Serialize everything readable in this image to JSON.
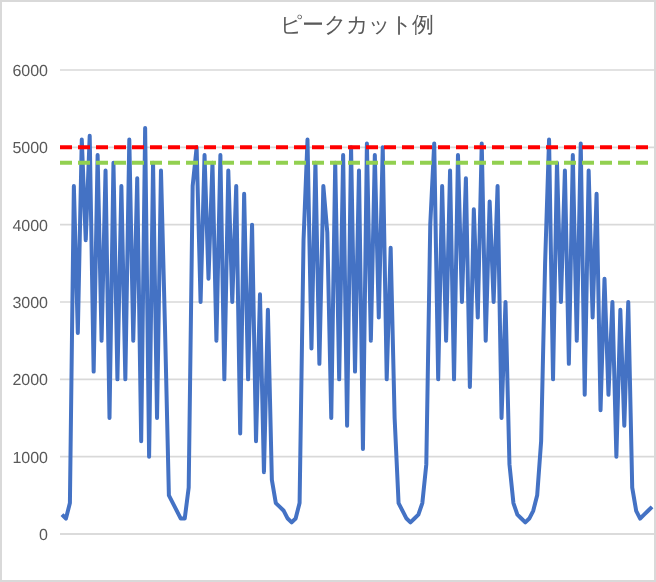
{
  "chart_data": {
    "type": "line",
    "title": "ピークカット例",
    "categories": [
      null,
      null,
      null,
      null,
      null,
      null,
      null,
      null,
      null,
      null,
      null,
      null,
      null,
      null,
      null,
      null,
      null,
      null,
      null,
      null,
      null,
      null,
      null,
      null,
      null,
      null,
      null,
      null,
      null,
      null,
      null,
      null,
      null,
      null,
      null,
      null,
      null,
      null,
      null,
      null,
      null,
      null,
      null,
      null,
      null,
      null,
      null,
      null,
      null,
      null,
      null,
      null,
      null,
      null,
      null,
      null,
      null,
      null,
      null,
      null,
      null,
      null,
      null,
      null,
      null,
      null,
      null,
      null,
      null,
      null,
      null,
      null,
      null,
      null,
      null,
      null,
      null,
      null,
      null,
      null,
      null,
      null,
      null,
      null,
      null,
      null,
      null,
      null,
      null,
      null,
      null,
      null,
      null,
      null,
      null,
      null,
      null,
      null,
      null,
      null,
      null,
      null,
      null,
      null,
      null,
      null,
      null,
      null,
      null,
      null,
      null,
      null,
      null,
      null,
      null,
      null,
      null,
      null,
      null,
      null,
      null,
      null,
      null,
      null,
      null,
      null,
      null,
      null,
      null,
      null,
      null,
      null,
      null,
      null,
      null,
      null,
      null,
      null,
      null,
      null,
      null,
      null,
      null,
      null,
      null,
      null,
      null,
      null,
      null,
      null
    ],
    "series": [
      {
        "color": "#4472c4",
        "values": [
          250,
          200,
          400,
          4500,
          2600,
          5100,
          3800,
          5150,
          2100,
          4900,
          2500,
          4700,
          1500,
          4800,
          2000,
          4500,
          2000,
          5100,
          2500,
          4600,
          1200,
          5250,
          1000,
          4800,
          1500,
          4700,
          2700,
          500,
          400,
          300,
          200,
          200,
          600,
          4500,
          5000,
          3000,
          4900,
          3300,
          4800,
          2500,
          4900,
          2000,
          4700,
          3000,
          4500,
          1300,
          4400,
          2000,
          4000,
          1200,
          3100,
          800,
          2900,
          700,
          400,
          350,
          300,
          200,
          150,
          200,
          400,
          3800,
          5100,
          2400,
          4800,
          2200,
          4500,
          3900,
          1500,
          4800,
          2000,
          4900,
          1400,
          5000,
          2100,
          4700,
          1100,
          5050,
          2500,
          4900,
          2800,
          5000,
          2000,
          3700,
          1500,
          400,
          300,
          200,
          150,
          200,
          250,
          400,
          900,
          4000,
          5050,
          2000,
          4500,
          2500,
          4700,
          2000,
          4900,
          3000,
          4600,
          1900,
          4200,
          2800,
          5050,
          2500,
          4300,
          3000,
          4500,
          1500,
          3000,
          900,
          400,
          250,
          200,
          150,
          200,
          300,
          500,
          1200,
          3500,
          5100,
          2000,
          4800,
          3000,
          4700,
          2200,
          4900,
          2500,
          5050,
          1800,
          4700,
          2800,
          4400,
          1600,
          3300,
          1800,
          3000,
          1000,
          2900,
          1400,
          3000,
          600,
          300,
          200,
          250,
          300,
          350
        ]
      }
    ],
    "ylim": [
      0,
      6000
    ],
    "yticks": [
      0,
      1000,
      2000,
      3000,
      4000,
      5000,
      6000
    ],
    "grid": "y",
    "marker": "none",
    "line_style": "solid",
    "ref_lines": [
      {
        "axis": "y",
        "value": 5000,
        "color": "#ff0000",
        "line_style": "dashed"
      },
      {
        "axis": "y",
        "value": 4800,
        "color": "#92d050",
        "line_style": "dashed"
      }
    ]
  }
}
